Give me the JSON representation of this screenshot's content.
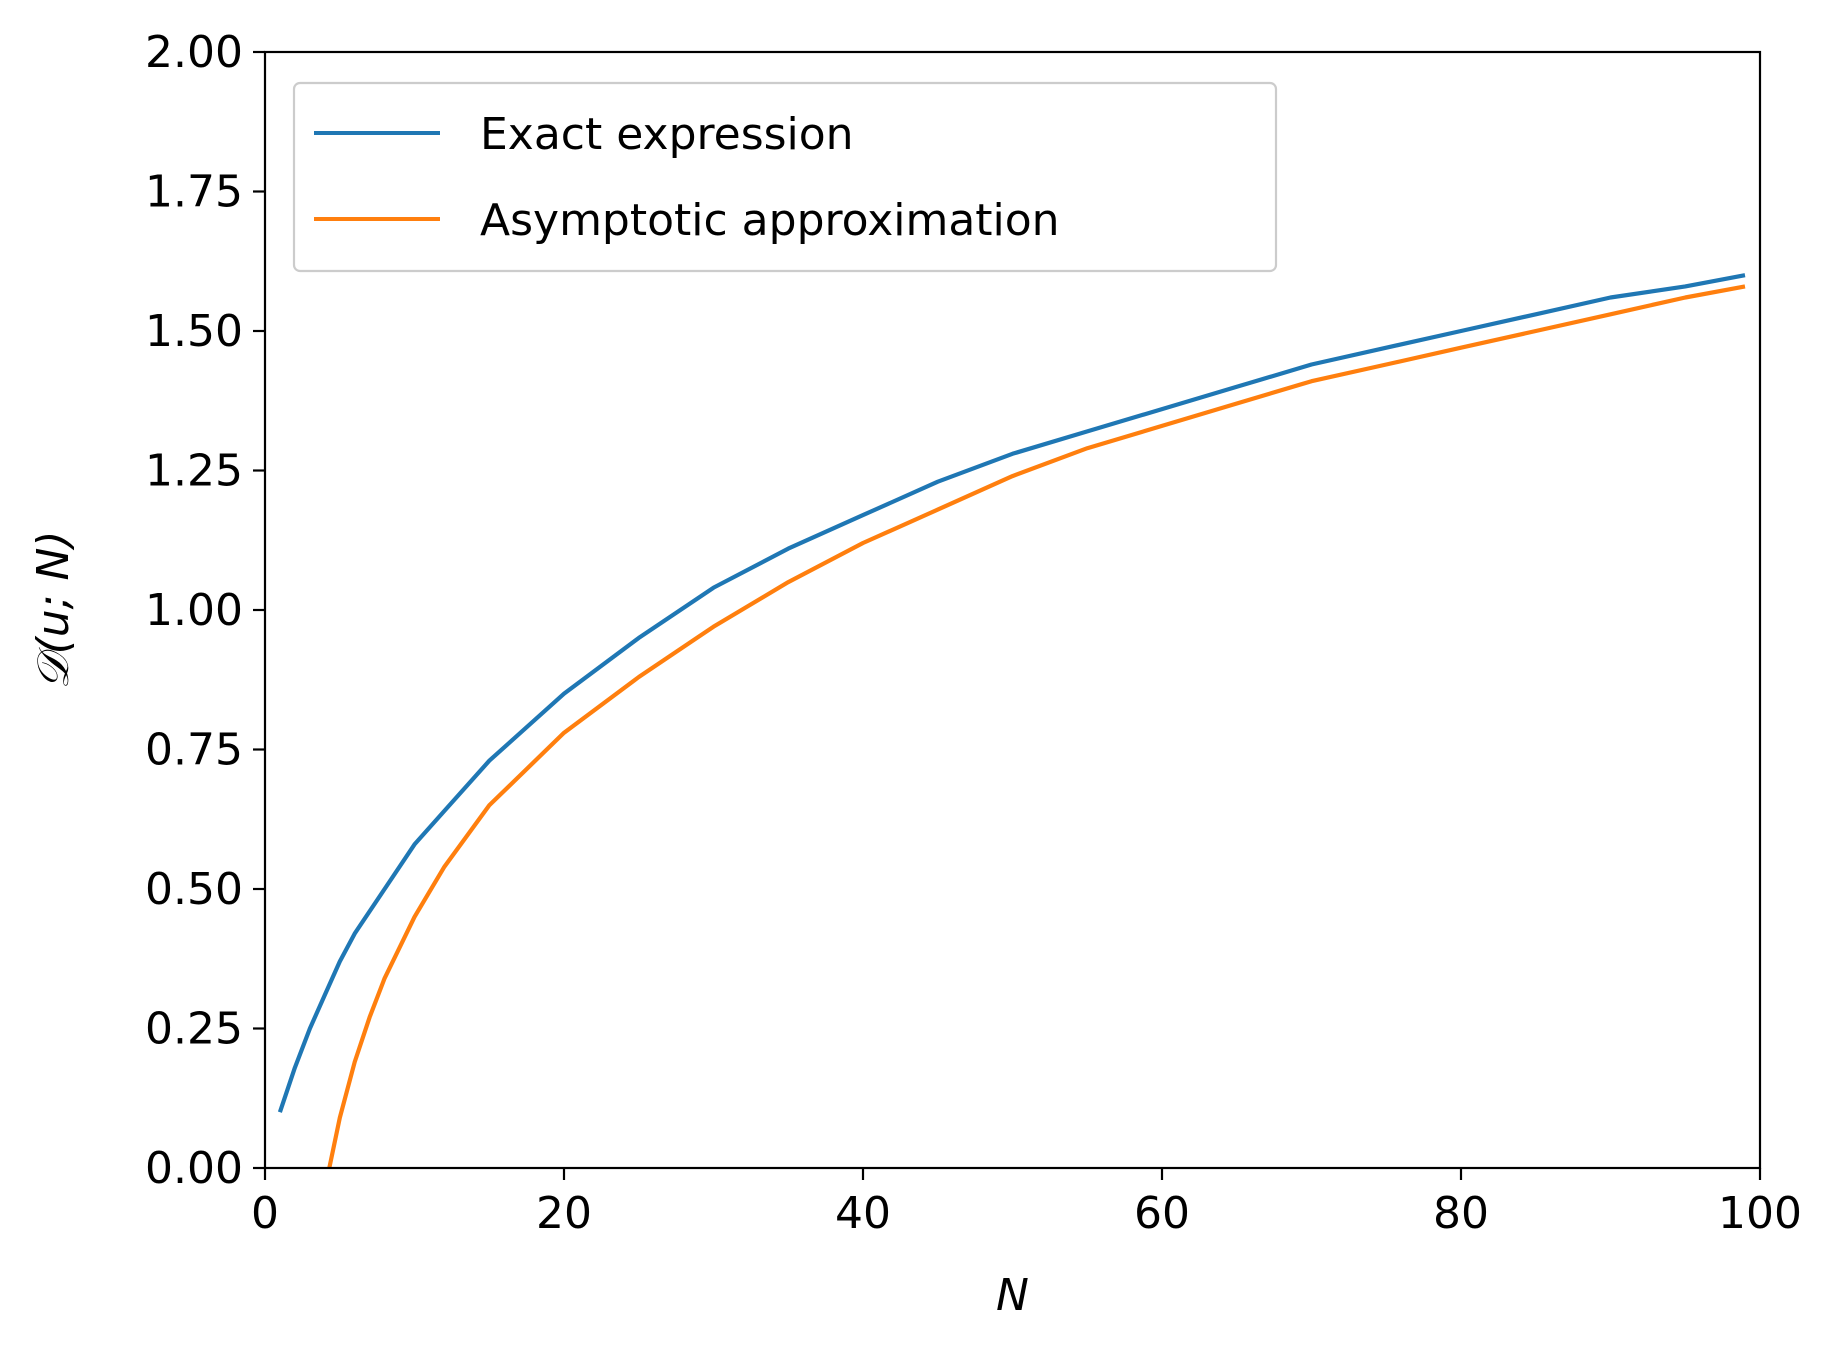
{
  "chart_data": {
    "type": "line",
    "xlabel": "N",
    "ylabel": "𝒟(u; N)",
    "xlim": [
      0,
      100
    ],
    "ylim": [
      0,
      2.0
    ],
    "xticks": [
      "0",
      "20",
      "40",
      "60",
      "80",
      "100"
    ],
    "yticks": [
      "0.00",
      "0.25",
      "0.50",
      "0.75",
      "1.00",
      "1.25",
      "1.50",
      "1.75",
      "2.00"
    ],
    "grid": false,
    "legend_position": "top-left",
    "series": [
      {
        "name": "Exact expression",
        "color": "#1f77b4",
        "x": [
          1,
          2,
          3,
          4,
          5,
          6,
          8,
          10,
          12,
          15,
          20,
          25,
          30,
          35,
          40,
          45,
          50,
          55,
          60,
          65,
          70,
          75,
          80,
          85,
          90,
          95,
          99
        ],
        "y": [
          0.1,
          0.18,
          0.25,
          0.31,
          0.37,
          0.42,
          0.5,
          0.58,
          0.64,
          0.73,
          0.85,
          0.95,
          1.04,
          1.11,
          1.17,
          1.23,
          1.28,
          1.32,
          1.36,
          1.4,
          1.44,
          1.47,
          1.5,
          1.53,
          1.56,
          1.58,
          1.6
        ]
      },
      {
        "name": "Asymptotic approximation",
        "color": "#ff7f0e",
        "x": [
          4.3,
          5,
          6,
          7,
          8,
          10,
          12,
          15,
          20,
          25,
          30,
          35,
          40,
          45,
          50,
          55,
          60,
          65,
          70,
          75,
          80,
          85,
          90,
          95,
          99
        ],
        "y": [
          0.0,
          0.09,
          0.19,
          0.27,
          0.34,
          0.45,
          0.54,
          0.65,
          0.78,
          0.88,
          0.97,
          1.05,
          1.12,
          1.18,
          1.24,
          1.29,
          1.33,
          1.37,
          1.41,
          1.44,
          1.47,
          1.5,
          1.53,
          1.56,
          1.58
        ]
      }
    ]
  }
}
